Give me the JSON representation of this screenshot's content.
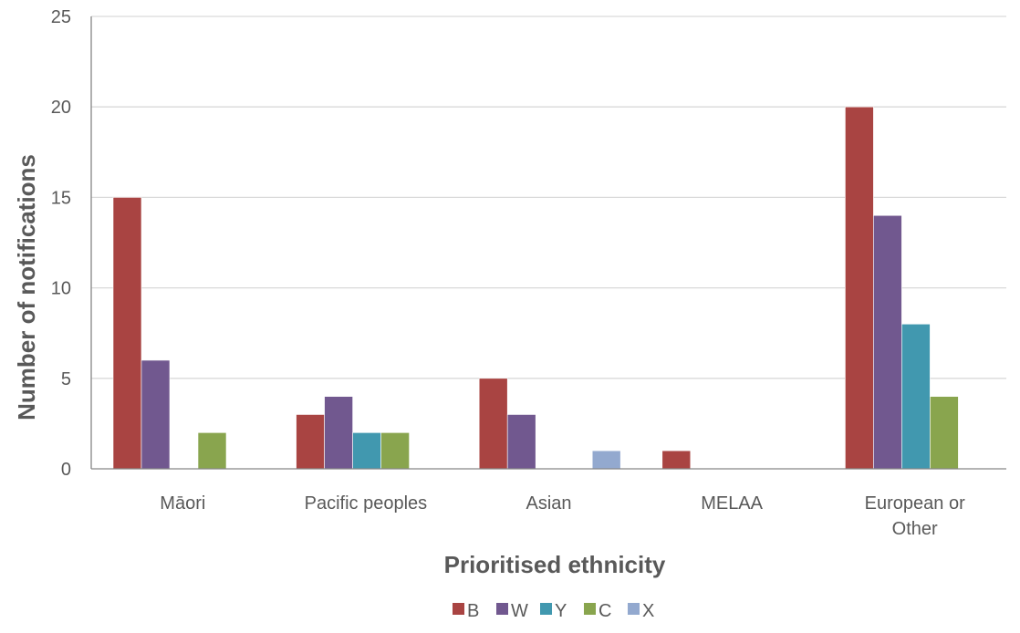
{
  "chart_data": {
    "type": "bar",
    "xlabel": "Prioritised ethnicity",
    "ylabel": "Number of notifications",
    "ylim": [
      0,
      25
    ],
    "yticks": [
      0,
      5,
      10,
      15,
      20,
      25
    ],
    "grid": true,
    "legend_position": "bottom",
    "categories": [
      [
        "Māori"
      ],
      [
        "Pacific peoples"
      ],
      [
        "Asian"
      ],
      [
        "MELAA"
      ],
      [
        "European or",
        "Other"
      ]
    ],
    "series": [
      {
        "name": "B",
        "color": "#A94442",
        "values": [
          15,
          3,
          5,
          1,
          20
        ]
      },
      {
        "name": "W",
        "color": "#71588F",
        "values": [
          6,
          4,
          3,
          0,
          14
        ]
      },
      {
        "name": "Y",
        "color": "#4198AF",
        "values": [
          0,
          2,
          0,
          0,
          8
        ]
      },
      {
        "name": "C",
        "color": "#89A54E",
        "values": [
          2,
          2,
          0,
          0,
          4
        ]
      },
      {
        "name": "X",
        "color": "#93A9CF",
        "values": [
          0,
          0,
          1,
          0,
          0
        ]
      }
    ]
  }
}
